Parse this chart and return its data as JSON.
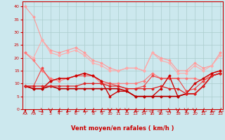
{
  "xlabel": "Vent moyen/en rafales ( km/h )",
  "background_color": "#cce8ee",
  "grid_color": "#aacccc",
  "x_ticks": [
    0,
    1,
    2,
    3,
    4,
    5,
    6,
    7,
    8,
    9,
    10,
    11,
    12,
    13,
    14,
    15,
    16,
    17,
    18,
    19,
    20,
    21,
    22,
    23
  ],
  "y_ticks": [
    0,
    5,
    10,
    15,
    20,
    25,
    30,
    35,
    40
  ],
  "xlim": [
    -0.3,
    23.3
  ],
  "ylim": [
    0,
    42
  ],
  "series": [
    {
      "x": [
        0,
        1,
        2,
        3,
        4,
        5,
        6,
        7,
        8,
        9,
        10,
        11,
        12,
        13,
        14,
        15,
        16,
        17,
        18,
        19,
        20,
        21,
        22,
        23
      ],
      "y": [
        40,
        36,
        27,
        23,
        22,
        23,
        24,
        22,
        19,
        18,
        16,
        15,
        16,
        16,
        15,
        22,
        20,
        19,
        15,
        15,
        18,
        16,
        17,
        22
      ],
      "color": "#ff9999",
      "marker": "D",
      "markersize": 1.5,
      "linewidth": 0.8
    },
    {
      "x": [
        0,
        1,
        2,
        3,
        4,
        5,
        6,
        7,
        8,
        9,
        10,
        11,
        12,
        13,
        14,
        15,
        16,
        17,
        18,
        19,
        20,
        21,
        22,
        23
      ],
      "y": [
        22,
        20,
        27,
        22,
        21,
        22,
        23,
        21,
        18,
        17,
        15,
        15,
        16,
        16,
        15,
        22,
        19,
        18,
        14,
        14,
        17,
        15,
        17,
        21
      ],
      "color": "#ffaaaa",
      "marker": "D",
      "markersize": 1.5,
      "linewidth": 0.8
    },
    {
      "x": [
        0,
        1,
        2,
        3,
        4,
        5,
        6,
        7,
        8,
        9,
        10,
        11,
        12,
        13,
        14,
        15,
        16,
        17,
        18,
        19,
        20,
        21,
        22,
        23
      ],
      "y": [
        22,
        19,
        15,
        12,
        11,
        12,
        13,
        14,
        13,
        10,
        10,
        10,
        10,
        10,
        11,
        14,
        12,
        12,
        12,
        12,
        12,
        11,
        14,
        15
      ],
      "color": "#ff7777",
      "marker": "D",
      "markersize": 1.5,
      "linewidth": 0.8
    },
    {
      "x": [
        0,
        1,
        2,
        3,
        4,
        5,
        6,
        7,
        8,
        9,
        10,
        11,
        12,
        13,
        14,
        15,
        16,
        17,
        18,
        19,
        20,
        21,
        22,
        23
      ],
      "y": [
        9,
        9,
        16,
        11,
        12,
        12,
        13,
        13,
        13,
        11,
        10,
        9,
        8,
        8,
        9,
        13,
        12,
        12,
        12,
        7,
        8,
        11,
        13,
        14
      ],
      "color": "#ee4444",
      "marker": "D",
      "markersize": 1.5,
      "linewidth": 0.8
    },
    {
      "x": [
        0,
        1,
        2,
        3,
        4,
        5,
        6,
        7,
        8,
        9,
        10,
        11,
        12,
        13,
        14,
        15,
        16,
        17,
        18,
        19,
        20,
        21,
        22,
        23
      ],
      "y": [
        9,
        8,
        8,
        11,
        12,
        12,
        13,
        14,
        13,
        11,
        5,
        7,
        7,
        5,
        5,
        5,
        8,
        13,
        5,
        6,
        10,
        12,
        14,
        15
      ],
      "color": "#cc0000",
      "marker": "D",
      "markersize": 1.5,
      "linewidth": 1.0
    },
    {
      "x": [
        0,
        1,
        2,
        3,
        4,
        5,
        6,
        7,
        8,
        9,
        10,
        11,
        12,
        13,
        14,
        15,
        16,
        17,
        18,
        19,
        20,
        21,
        22,
        23
      ],
      "y": [
        9,
        8,
        8,
        9,
        8,
        8,
        8,
        8,
        8,
        8,
        8,
        8,
        7,
        5,
        5,
        5,
        5,
        5,
        5,
        6,
        6,
        9,
        13,
        14
      ],
      "color": "#bb0000",
      "marker": "D",
      "markersize": 1.5,
      "linewidth": 1.2
    },
    {
      "x": [
        0,
        1,
        2,
        3,
        4,
        5,
        6,
        7,
        8,
        9,
        10,
        11,
        12,
        13,
        14,
        15,
        16,
        17,
        18,
        19,
        20,
        21,
        22,
        23
      ],
      "y": [
        9,
        9,
        9,
        9,
        9,
        9,
        9,
        10,
        10,
        10,
        9,
        9,
        8,
        8,
        8,
        8,
        9,
        8,
        8,
        6,
        6,
        9,
        13,
        14
      ],
      "color": "#dd2222",
      "marker": "D",
      "markersize": 1.5,
      "linewidth": 0.9
    }
  ],
  "arrow_angles": [
    90,
    90,
    315,
    270,
    225,
    225,
    225,
    225,
    225,
    225,
    270,
    270,
    270,
    225,
    225,
    45,
    45,
    315,
    270,
    270,
    270,
    225,
    225,
    225
  ],
  "arrow_color": "#cc0000",
  "axis_color": "#cc0000",
  "tick_color": "#cc0000",
  "xlabel_color": "#cc0000",
  "xlabel_fontsize": 6,
  "tick_fontsize": 4.5
}
